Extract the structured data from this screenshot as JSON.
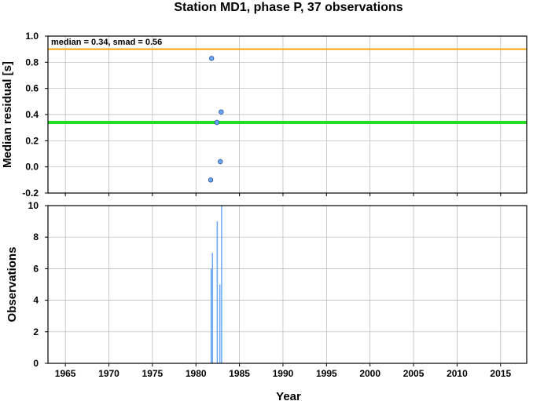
{
  "chart_data": {
    "title": "Station MD1, phase P, 37 observations",
    "xlabel": "Year",
    "xlim": [
      1963,
      2018
    ],
    "x_ticks": [
      1965,
      1970,
      1975,
      1980,
      1985,
      1990,
      1995,
      2000,
      2005,
      2010,
      2015
    ],
    "grid": true,
    "panels": [
      {
        "name": "residuals",
        "type": "scatter",
        "ylabel": "Median residual [s]",
        "ylim": [
          -0.2,
          1.0
        ],
        "y_ticks": [
          -0.2,
          0.0,
          0.2,
          0.4,
          0.6,
          0.8,
          1.0
        ],
        "y_tick_labels": [
          "-0.2",
          "0.0",
          "0.2",
          "0.4",
          "0.6",
          "0.8",
          "1.0"
        ],
        "annotation": "median = 0.34, smad = 0.56",
        "median": 0.34,
        "median_color": "#22dd22",
        "upper_line": 0.9,
        "upper_color": "#ffa500",
        "point_color": "#6aa8f5",
        "points": [
          {
            "x": 1981.8,
            "y": 0.83
          },
          {
            "x": 1982.9,
            "y": 0.42
          },
          {
            "x": 1982.4,
            "y": 0.34
          },
          {
            "x": 1982.8,
            "y": 0.04
          },
          {
            "x": 1981.7,
            "y": -0.1
          }
        ]
      },
      {
        "name": "observations",
        "type": "bar",
        "ylabel": "Observations",
        "ylim": [
          0,
          10
        ],
        "y_ticks": [
          0,
          2,
          4,
          6,
          8,
          10
        ],
        "y_tick_labels": [
          "0",
          "2",
          "4",
          "6",
          "8",
          "10"
        ],
        "bar_color": "#6aa8f5",
        "bars": [
          {
            "x": 1981.75,
            "y": 6
          },
          {
            "x": 1981.9,
            "y": 7
          },
          {
            "x": 1982.45,
            "y": 9
          },
          {
            "x": 1982.75,
            "y": 5
          },
          {
            "x": 1982.95,
            "y": 10
          }
        ]
      }
    ]
  }
}
